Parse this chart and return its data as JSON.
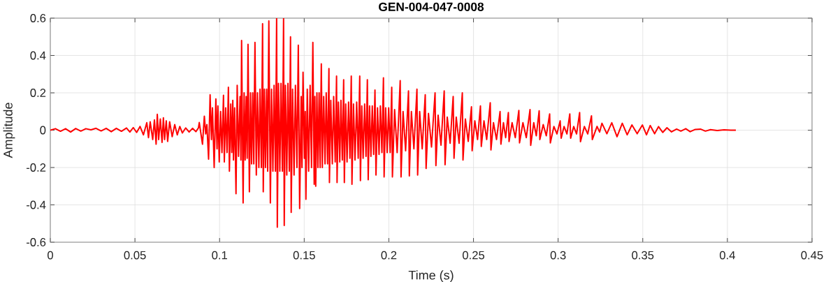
{
  "chart_data": {
    "type": "line",
    "title": "GEN-004-047-0008",
    "xlabel": "Time (s)",
    "ylabel": "Amplitude",
    "color": "#ff0000",
    "xlim": [
      0,
      0.45
    ],
    "ylim": [
      -0.6,
      0.6
    ],
    "xticks": [
      0,
      0.05,
      0.1,
      0.15,
      0.2,
      0.25,
      0.3,
      0.35,
      0.4,
      0.45
    ],
    "yticks": [
      -0.6,
      -0.4,
      -0.2,
      0,
      0.2,
      0.4,
      0.6
    ],
    "grid": true,
    "x": [
      0,
      0.003,
      0.006,
      0.009,
      0.012,
      0.015,
      0.018,
      0.021,
      0.024,
      0.027,
      0.03,
      0.033,
      0.036,
      0.039,
      0.042,
      0.045,
      0.047,
      0.049,
      0.051,
      0.053,
      0.055,
      0.057,
      0.058,
      0.059,
      0.0605,
      0.0615,
      0.0625,
      0.0632,
      0.064,
      0.065,
      0.066,
      0.0668,
      0.0675,
      0.0685,
      0.0693,
      0.0705,
      0.072,
      0.0735,
      0.075,
      0.0765,
      0.078,
      0.08,
      0.082,
      0.084,
      0.086,
      0.0875,
      0.088,
      0.0899,
      0.091,
      0.0918,
      0.0925,
      0.0935,
      0.0944,
      0.0952,
      0.0958,
      0.0968,
      0.0978,
      0.0985,
      0.099,
      0.0998,
      0.1006,
      0.1014,
      0.1023,
      0.1028,
      0.1036,
      0.1044,
      0.1052,
      0.1058,
      0.1066,
      0.1072,
      0.1078,
      0.1082,
      0.1089,
      0.1097,
      0.1104,
      0.1112,
      0.1121,
      0.1126,
      0.113,
      0.1139,
      0.1145,
      0.1151,
      0.1157,
      0.1163,
      0.1168,
      0.1176,
      0.1183,
      0.1189,
      0.1196,
      0.1202,
      0.1209,
      0.1217,
      0.1224,
      0.1232,
      0.1239,
      0.1247,
      0.1254,
      0.1258,
      0.1265,
      0.1271,
      0.1278,
      0.1284,
      0.1291,
      0.13,
      0.1307,
      0.1315,
      0.1322,
      0.133,
      0.1337,
      0.1341,
      0.1348,
      0.1356,
      0.1363,
      0.1371,
      0.1378,
      0.1382,
      0.1389,
      0.1397,
      0.1404,
      0.1412,
      0.1419,
      0.1423,
      0.1431,
      0.144,
      0.1448,
      0.1457,
      0.1465,
      0.1473,
      0.1482,
      0.1487,
      0.1493,
      0.1501,
      0.1506,
      0.151,
      0.1518,
      0.1526,
      0.1535,
      0.1543,
      0.1551,
      0.1559,
      0.1563,
      0.1568,
      0.1575,
      0.1581,
      0.1588,
      0.1594,
      0.1601,
      0.1607,
      0.1615,
      0.1623,
      0.163,
      0.1638,
      0.1646,
      0.1649,
      0.1657,
      0.1666,
      0.1674,
      0.1683,
      0.1691,
      0.1694,
      0.1702,
      0.171,
      0.1717,
      0.1725,
      0.1733,
      0.1737,
      0.1745,
      0.1753,
      0.1762,
      0.177,
      0.1778,
      0.1782,
      0.1791,
      0.18,
      0.181,
      0.1819,
      0.1828,
      0.1832,
      0.184,
      0.1848,
      0.1857,
      0.1865,
      0.1873,
      0.1878,
      0.1886,
      0.1894,
      0.1902,
      0.191,
      0.1918,
      0.1924,
      0.1933,
      0.1942,
      0.195,
      0.1959,
      0.1968,
      0.1972,
      0.1981,
      0.199,
      0.1999,
      0.2008,
      0.2017,
      0.2021,
      0.2034,
      0.2049,
      0.2067,
      0.2072,
      0.2084,
      0.2099,
      0.2116,
      0.2121,
      0.2133,
      0.2148,
      0.2166,
      0.217,
      0.2182,
      0.2197,
      0.2215,
      0.222,
      0.2234,
      0.2252,
      0.2273,
      0.2278,
      0.2291,
      0.2308,
      0.2327,
      0.2332,
      0.2345,
      0.2362,
      0.238,
      0.2385,
      0.2398,
      0.2415,
      0.2434,
      0.2438,
      0.2452,
      0.2469,
      0.2488,
      0.2492,
      0.2508,
      0.2524,
      0.2541,
      0.2546,
      0.2562,
      0.2578,
      0.2599,
      0.2603,
      0.2618,
      0.2636,
      0.2657,
      0.2662,
      0.2677,
      0.269,
      0.2706,
      0.271,
      0.2728,
      0.2747,
      0.2768,
      0.2772,
      0.2792,
      0.2812,
      0.2834,
      0.2838,
      0.2856,
      0.2871,
      0.2888,
      0.2892,
      0.2912,
      0.293,
      0.295,
      0.2954,
      0.2975,
      0.2993,
      0.3012,
      0.3018,
      0.3035,
      0.3052,
      0.3069,
      0.3074,
      0.3092,
      0.3109,
      0.3127,
      0.3132,
      0.3155,
      0.3175,
      0.3197,
      0.3202,
      0.323,
      0.3245,
      0.3259,
      0.3288,
      0.3317,
      0.3348,
      0.3379,
      0.3408,
      0.3436,
      0.3467,
      0.3498,
      0.3522,
      0.3544,
      0.357,
      0.3593,
      0.3618,
      0.3643,
      0.367,
      0.37,
      0.3725,
      0.3754,
      0.378,
      0.381,
      0.3841,
      0.387,
      0.39,
      0.394,
      0.398,
      0.402,
      0.405
    ],
    "values": [
      0,
      0.008,
      -0.006,
      0.008,
      -0.01,
      0.009,
      -0.005,
      0.008,
      0.002,
      0.01,
      -0.004,
      0.01,
      -0.008,
      0.01,
      -0.006,
      0.012,
      -0.01,
      0.014,
      -0.012,
      0.02,
      -0.025,
      0.04,
      -0.04,
      0.045,
      -0.05,
      0.055,
      -0.075,
      0.085,
      -0.05,
      0.06,
      -0.065,
      0.066,
      -0.05,
      0.05,
      -0.06,
      0.045,
      -0.035,
      0.03,
      -0.025,
      0.02,
      -0.015,
      0.012,
      -0.01,
      0.01,
      -0.008,
      0.012,
      0.041,
      -0.075,
      0.075,
      -0.02,
      0.03,
      -0.155,
      0.19,
      -0.05,
      0.12,
      -0.2,
      0.167,
      -0.1,
      0.13,
      -0.17,
      0.1,
      -0.12,
      0.187,
      -0.17,
      0.12,
      -0.12,
      0.23,
      -0.22,
      0.14,
      -0.12,
      0.16,
      -0.16,
      0.12,
      -0.34,
      0.24,
      -0.14,
      0.18,
      -0.16,
      0.48,
      -0.39,
      0.2,
      -0.16,
      0.18,
      -0.15,
      0.46,
      -0.33,
      0.2,
      -0.18,
      0.2,
      -0.18,
      0.47,
      -0.24,
      0.2,
      -0.2,
      0.22,
      -0.2,
      0.57,
      -0.33,
      0.22,
      -0.2,
      0.22,
      -0.22,
      0.585,
      -0.39,
      0.22,
      -0.22,
      0.24,
      -0.22,
      0.6,
      -0.52,
      0.25,
      -0.22,
      0.25,
      -0.22,
      0.6,
      -0.51,
      0.24,
      -0.24,
      0.25,
      -0.22,
      0.5,
      -0.44,
      0.22,
      -0.24,
      0.24,
      -0.2,
      0.455,
      -0.42,
      0.18,
      -0.2,
      0.31,
      -0.15,
      0.1,
      -0.37,
      0.22,
      -0.22,
      0.24,
      -0.2,
      0.47,
      -0.29,
      0.18,
      -0.3,
      0.2,
      -0.2,
      0.2,
      -0.2,
      0.355,
      -0.2,
      0.18,
      -0.18,
      0.2,
      -0.18,
      0.33,
      -0.28,
      0.16,
      -0.18,
      0.18,
      -0.17,
      0.29,
      -0.28,
      0.15,
      -0.17,
      0.16,
      -0.16,
      0.27,
      -0.28,
      0.14,
      -0.17,
      0.15,
      -0.15,
      0.29,
      -0.29,
      0.14,
      -0.16,
      0.15,
      -0.15,
      0.29,
      -0.27,
      0.13,
      -0.15,
      0.14,
      -0.14,
      0.27,
      -0.265,
      0.13,
      -0.14,
      0.13,
      -0.13,
      0.215,
      -0.24,
      0.12,
      -0.13,
      0.13,
      -0.12,
      0.28,
      -0.25,
      0.12,
      -0.12,
      0.12,
      -0.12,
      0.23,
      -0.25,
      0.11,
      -0.12,
      0.265,
      -0.25,
      0.1,
      -0.11,
      0.21,
      -0.245,
      0.1,
      -0.1,
      0.22,
      -0.24,
      0.1,
      -0.1,
      0.19,
      -0.205,
      0.09,
      -0.09,
      0.2,
      -0.19,
      0.08,
      -0.08,
      0.21,
      -0.185,
      0.07,
      -0.07,
      0.18,
      -0.15,
      0.07,
      -0.07,
      0.2,
      -0.16,
      0.06,
      -0.06,
      0.125,
      -0.11,
      0.05,
      -0.05,
      0.13,
      -0.087,
      0.05,
      -0.05,
      0.147,
      -0.106,
      0.04,
      -0.05,
      0.1,
      -0.075,
      0.04,
      -0.04,
      0.094,
      -0.061,
      0.04,
      -0.04,
      0.106,
      -0.068,
      0.04,
      -0.04,
      0.11,
      -0.081,
      0.04,
      -0.03,
      0.104,
      -0.05,
      0.03,
      -0.03,
      0.087,
      -0.068,
      0.02,
      -0.02,
      0.05,
      -0.043,
      0.02,
      -0.02,
      0.087,
      -0.043,
      0.02,
      -0.02,
      0.094,
      -0.062,
      0.02,
      -0.02,
      0.077,
      -0.05,
      0.02,
      -0.01,
      0.037,
      -0.019,
      0.04,
      -0.035,
      0.037,
      -0.025,
      0.028,
      -0.019,
      0.028,
      -0.025,
      0.025,
      -0.019,
      0.019,
      -0.012,
      0.013,
      -0.009,
      0.006,
      -0.005,
      0.008,
      -0.008,
      0.004,
      0.006,
      -0.005,
      0.003,
      -0.002,
      0.002,
      0,
      0
    ]
  }
}
